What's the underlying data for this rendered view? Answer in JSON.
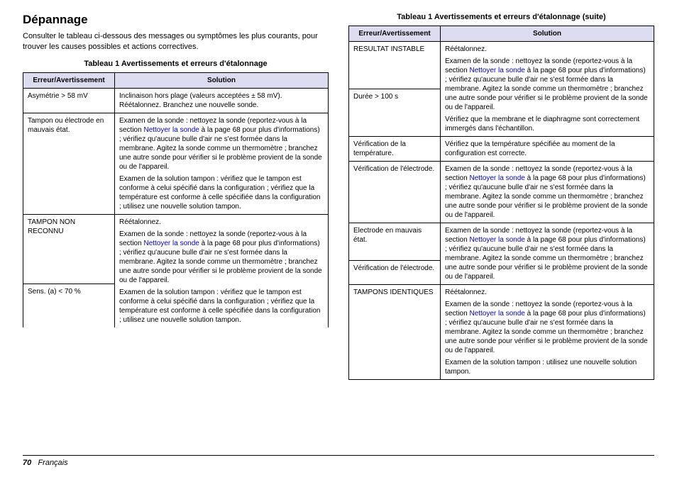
{
  "colors": {
    "header_bg": "#dcdcf0",
    "link": "#0000cc",
    "border": "#000000",
    "text": "#000000",
    "background": "#ffffff"
  },
  "heading": "Dépannage",
  "intro": "Consulter le tableau ci-dessous des messages ou symptômes les plus courants, pour trouver les causes possibles et actions correctives.",
  "table1": {
    "caption": "Tableau 1  Avertissements et erreurs d'étalonnage",
    "col_err": "Erreur/Avertissement",
    "col_sol": "Solution",
    "r1_err": "Asymétrie > 58 mV",
    "r1_sol": "Inclinaison hors plage (valeurs acceptées ± 58 mV). Réétalonnez. Branchez une nouvelle sonde.",
    "r2_err": "Tampon ou électrode en mauvais état.",
    "r2_sol_a1": "Examen de la sonde : nettoyez la sonde (reportez-vous à la section ",
    "r2_sol_link": "Nettoyer la sonde",
    "r2_sol_a2": " à la page 68 pour plus d'informations) ; vérifiez qu'aucune bulle d'air ne s'est formée dans la membrane. Agitez la sonde comme un thermomètre ; branchez une autre sonde pour vérifier si le problème provient de la sonde ou de l'appareil.",
    "r2_sol_b": "Examen de la solution tampon : vérifiez que le tampon est conforme à celui spécifié dans la configuration ; vérifiez que la température est conforme à celle spécifiée dans la configuration ; utilisez une nouvelle solution tampon.",
    "r3_err": "TAMPON NON RECONNU",
    "r3b_err": "Sens. (a) < 70 %",
    "r3_sol_a": "Réétalonnez.",
    "r3_sol_b1": "Examen de la sonde : nettoyez la sonde (reportez-vous à la section ",
    "r3_sol_link": "Nettoyer la sonde",
    "r3_sol_b2": " à la page 68 pour plus d'informations) ; vérifiez qu'aucune bulle d'air ne s'est formée dans la membrane. Agitez la sonde comme un thermomètre ; branchez une autre sonde pour vérifier si le problème provient de la sonde ou de l'appareil.",
    "r3_sol_c": "Examen de la solution tampon : vérifiez que le tampon est conforme à celui spécifié dans la configuration ; vérifiez que la température est conforme à celle spécifiée dans la configuration ; utilisez une nouvelle solution tampon."
  },
  "table2": {
    "caption": "Tableau 1  Avertissements et erreurs d'étalonnage (suite)",
    "col_err": "Erreur/Avertissement",
    "col_sol": "Solution",
    "r1_err": "RESULTAT INSTABLE",
    "r1b_err": "Durée > 100 s",
    "r1_sol_a": "Réétalonnez.",
    "r1_sol_b1": "Examen de la sonde : nettoyez la sonde (reportez-vous à la section ",
    "r1_sol_link": "Nettoyer la sonde",
    "r1_sol_b2": " à la page 68 pour plus d'informations) ; vérifiez qu'aucune bulle d'air ne s'est formée dans la membrane. Agitez la sonde comme un thermomètre ; branchez une autre sonde pour vérifier si le problème provient de la sonde ou de l'appareil.",
    "r1_sol_c": "Vérifiez que la membrane et le diaphragme sont correctement immergés dans l'échantillon.",
    "r2_err": "Vérification de la température.",
    "r2_sol": "Vérifiez que la température spécifiée au moment de la configuration est correcte.",
    "r2b_err": "Vérification de l'électrode.",
    "r2b_sol_a1": "Examen de la sonde : nettoyez la sonde (reportez-vous à la section ",
    "r2b_sol_link": "Nettoyer la sonde",
    "r2b_sol_a2": " à la page 68 pour plus d'informations) ; vérifiez qu'aucune bulle d'air ne s'est formée dans la membrane. Agitez la sonde comme un thermomètre ; branchez une autre sonde pour vérifier si le problème provient de la sonde ou de l'appareil.",
    "r3_err": "Electrode en mauvais état.",
    "r3b_err": "Vérification de l'électrode.",
    "r3_sol_a1": "Examen de la sonde : nettoyez la sonde (reportez-vous à la section ",
    "r3_sol_link": "Nettoyer la sonde",
    "r3_sol_a2": " à la page 68 pour plus d'informations) ; vérifiez qu'aucune bulle d'air ne s'est formée dans la membrane. Agitez la sonde comme un thermomètre ; branchez une autre sonde pour vérifier si le problème provient de la sonde ou de l'appareil.",
    "r4_err": "TAMPONS IDENTIQUES",
    "r4_sol_a": "Réétalonnez.",
    "r4_sol_b1": "Examen de la sonde : nettoyez la sonde (reportez-vous à la section ",
    "r4_sol_link": "Nettoyer la sonde",
    "r4_sol_b2": " à la page 68 pour plus d'informations) ; vérifiez qu'aucune bulle d'air ne s'est formée dans la membrane. Agitez la sonde comme un thermomètre ; branchez une autre sonde pour vérifier si le problème provient de la sonde ou de l'appareil.",
    "r4_sol_c": "Examen de la solution tampon : utilisez une nouvelle solution tampon."
  },
  "footer": {
    "page": "70",
    "lang": "Français"
  }
}
